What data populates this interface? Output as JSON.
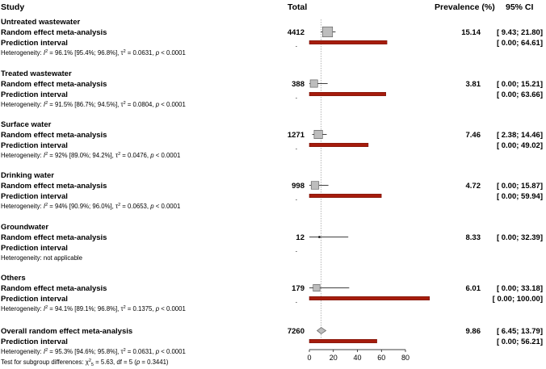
{
  "chart_data": {
    "type": "forest",
    "columns": {
      "study": "Study",
      "total": "Total",
      "prevalence": "Prevalence (%)",
      "ci": "95% CI"
    },
    "x_axis": {
      "min": 0,
      "max": 80,
      "ticks": [
        "0",
        "20",
        "40",
        "60",
        "80"
      ],
      "reference_line": 9.86
    },
    "model_label": "Random effect meta-analysis",
    "pi_label": "Prediction interval",
    "groups": [
      {
        "name": "Untreated wastewater",
        "total": "4412",
        "prevalence": "15.14",
        "est": 15.14,
        "lo": 9.43,
        "hi": 21.8,
        "ci_text": "[ 9.43;  21.80]",
        "pi_lo": 0.0,
        "pi_hi": 64.61,
        "pi_text": "[ 0.00;  64.61]",
        "heterogeneity": {
          "prefix": "Heterogeneity: ",
          "I2": "96.1% [95.4%; 96.8%]",
          "tau2": "0.0631",
          "p": "< 0.0001"
        },
        "weight": 1.0
      },
      {
        "name": "Treated wastewater",
        "total": "388",
        "prevalence": "3.81",
        "est": 3.81,
        "lo": 0.0,
        "hi": 15.21,
        "ci_text": "[ 0.00;  15.21]",
        "pi_lo": 0.0,
        "pi_hi": 63.66,
        "pi_text": "[ 0.00;  63.66]",
        "heterogeneity": {
          "prefix": "Heterogeneity: ",
          "I2": "91.5% [86.7%; 94.5%]",
          "tau2": "0.0804",
          "p": "< 0.0001"
        },
        "weight": 0.45
      },
      {
        "name": "Surface water",
        "total": "1271",
        "prevalence": "7.46",
        "est": 7.46,
        "lo": 2.38,
        "hi": 14.46,
        "ci_text": "[ 2.38;  14.46]",
        "pi_lo": 0.0,
        "pi_hi": 49.02,
        "pi_text": "[ 0.00;  49.02]",
        "heterogeneity": {
          "prefix": "Heterogeneity: ",
          "I2": "92% [89.0%; 94.2%]",
          "tau2": "0.0476",
          "p": "< 0.0001"
        },
        "weight": 0.62
      },
      {
        "name": "Drinking water",
        "total": "998",
        "prevalence": "4.72",
        "est": 4.72,
        "lo": 0.0,
        "hi": 15.87,
        "ci_text": "[ 0.00;  15.87]",
        "pi_lo": 0.0,
        "pi_hi": 59.94,
        "pi_text": "[ 0.00;  59.94]",
        "heterogeneity": {
          "prefix": "Heterogeneity: ",
          "I2": "94% [90.9%; 96.0%]",
          "tau2": "0.0653",
          "p": "< 0.0001"
        },
        "weight": 0.5
      },
      {
        "name": "Groundwater",
        "total": "12",
        "prevalence": "8.33",
        "est": 8.33,
        "lo": 0.0,
        "hi": 32.39,
        "ci_text": "[ 0.00;  32.39]",
        "pi_lo": null,
        "pi_hi": null,
        "pi_text": "",
        "heterogeneity_text": "Heterogeneity: not applicable",
        "weight": 0.12
      },
      {
        "name": "Others",
        "total": "179",
        "prevalence": "6.01",
        "est": 6.01,
        "lo": 0.0,
        "hi": 33.18,
        "ci_text": "[ 0.00;  33.18]",
        "pi_lo": 0.0,
        "pi_hi": 100.0,
        "pi_text": "[ 0.00; 100.00]",
        "heterogeneity": {
          "prefix": "Heterogeneity: ",
          "I2": "94.1% [89.1%; 96.8%]",
          "tau2": "0.1375",
          "p": "< 0.0001"
        },
        "weight": 0.35
      }
    ],
    "overall": {
      "name": "Overall random effect meta-analysis",
      "total": "7260",
      "prevalence": "9.86",
      "est": 9.86,
      "lo": 6.45,
      "hi": 13.79,
      "ci_text": "[ 6.45;  13.79]",
      "pi_lo": 0.0,
      "pi_hi": 56.21,
      "pi_text": "[ 0.00;  56.21]",
      "heterogeneity": {
        "prefix": "Heterogeneity: ",
        "I2": "95.3% [94.6%; 95.8%]",
        "tau2": "0.0631",
        "p": "< 0.0001"
      },
      "subgroup_test": {
        "prefix": "Test for subgroup differences: ",
        "chi2": "5.63",
        "df_sub": "5",
        "rest": ", df = 5 (",
        "p": "0.3441"
      }
    },
    "colors": {
      "prediction_bar": "#a61c0c",
      "prediction_bar_edge": "#6e0d05",
      "square": "#bdbdbd",
      "diamond": "#bdbdbd",
      "reference": "#888888"
    },
    "missing_marker": "."
  }
}
